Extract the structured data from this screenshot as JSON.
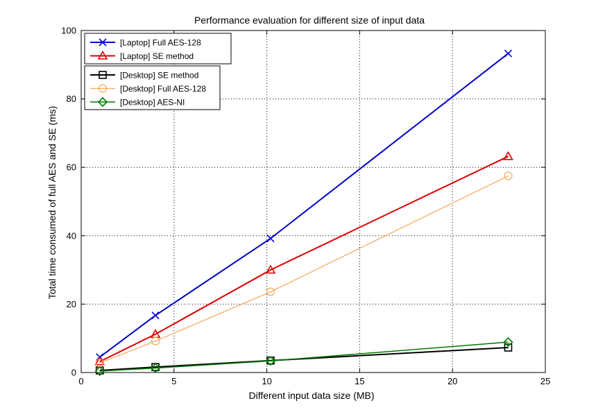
{
  "chart_data": {
    "type": "line",
    "title": "Performance evaluation for different size of input data",
    "xlabel": "Different input data size (MB)",
    "ylabel": "Total time consumed of full AES and SE (ms)",
    "xlim": [
      0,
      25
    ],
    "ylim": [
      0,
      100
    ],
    "xticks": [
      0,
      5,
      10,
      15,
      20,
      25
    ],
    "yticks": [
      0,
      20,
      40,
      60,
      80,
      100
    ],
    "grid": "dotted",
    "x": [
      1,
      4,
      10.2,
      23
    ],
    "series": [
      {
        "name": "[Laptop] Full AES-128",
        "values": [
          4.5,
          16.7,
          39.2,
          93.3
        ],
        "color": "#0000cc",
        "marker": "x",
        "width": 2,
        "legend_group": 1
      },
      {
        "name": "[Laptop] SE method",
        "values": [
          3.2,
          11.2,
          30.0,
          63.2
        ],
        "color": "#dd0000",
        "marker": "triangle",
        "width": 2,
        "legend_group": 1
      },
      {
        "name": "[Desktop] SE method",
        "values": [
          0.6,
          1.6,
          3.5,
          7.3
        ],
        "color": "#000000",
        "marker": "square",
        "width": 2,
        "legend_group": 2
      },
      {
        "name": "[Desktop] Full AES-128",
        "values": [
          2.8,
          9.2,
          23.6,
          57.5
        ],
        "color": "#f5a85a",
        "marker": "circle",
        "width": 1.2,
        "legend_group": 2
      },
      {
        "name": "[Desktop] AES-NI",
        "values": [
          0.4,
          1.3,
          3.4,
          8.9
        ],
        "color": "#007a00",
        "marker": "diamond",
        "width": 1.5,
        "legend_group": 2
      }
    ]
  }
}
